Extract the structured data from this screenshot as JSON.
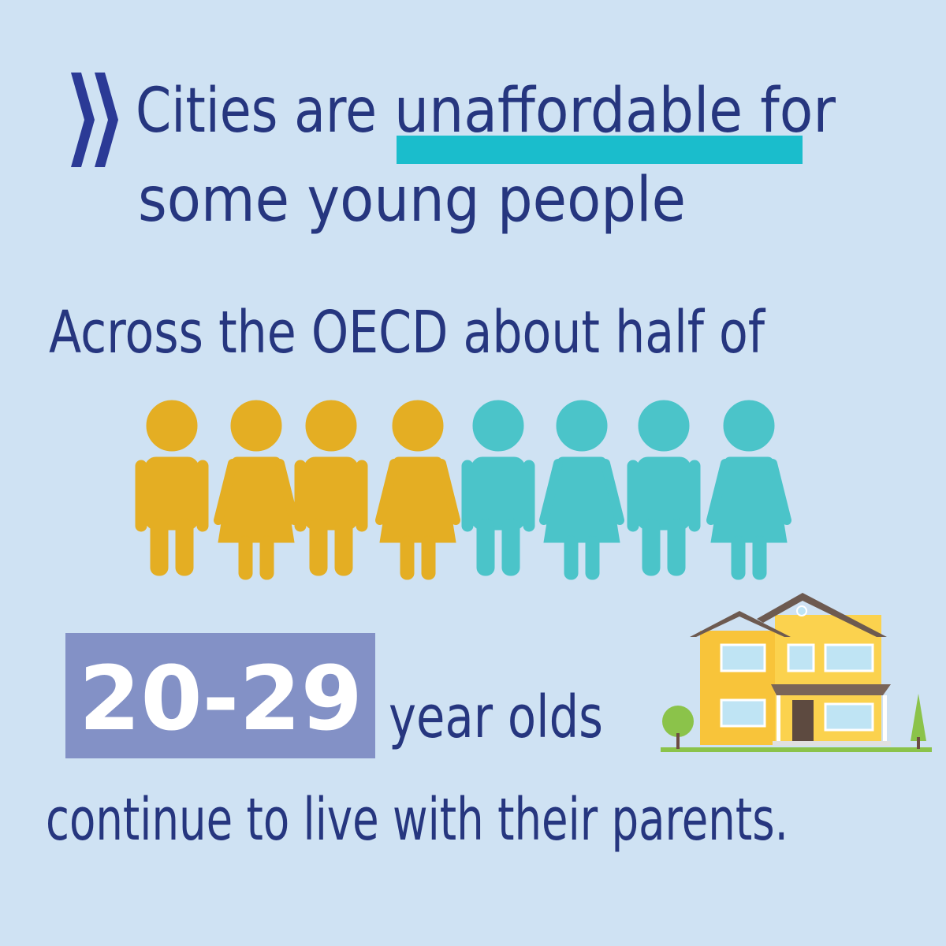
{
  "title": {
    "line1_start": "Cities are",
    "line1_highlight": "unaffordable for",
    "line2": "some young people"
  },
  "intro": "Across the OECD about half of",
  "age_range": "20-29",
  "age_suffix": "year olds",
  "conclusion": "continue to live with their parents."
}
